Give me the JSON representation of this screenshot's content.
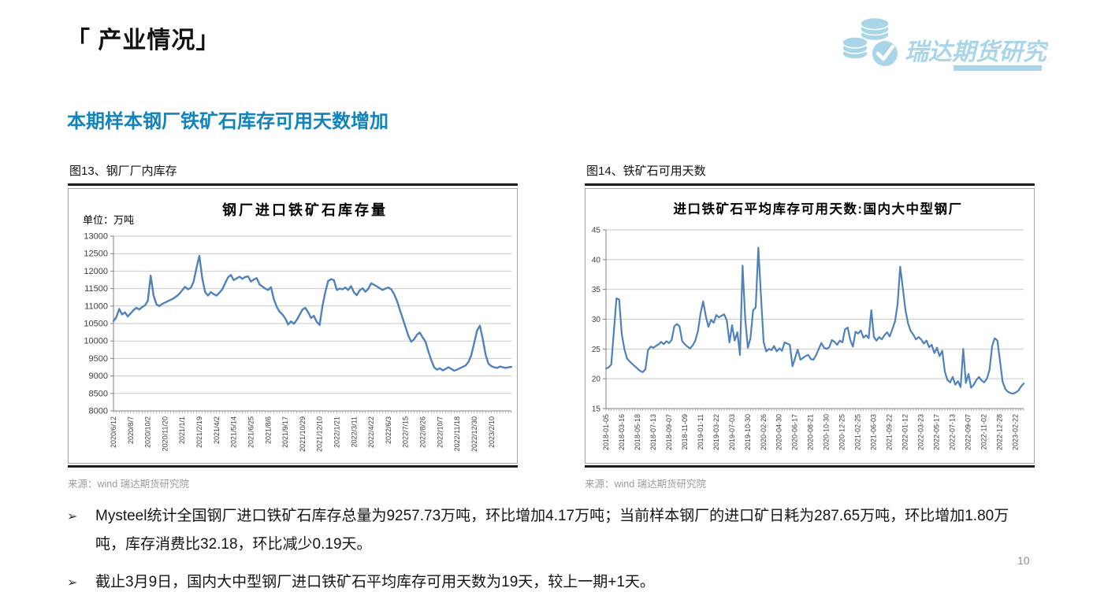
{
  "page": {
    "title": "「 产业情况」",
    "subtitle": "本期样本钢厂铁矿石库存可用天数增加",
    "page_number": "10"
  },
  "logo": {
    "text": "瑞达期货研究院",
    "icon": "coins-and-check-icon",
    "color": "#A9D5E9"
  },
  "colors": {
    "subtitle_accent": "#1283BC",
    "chart_line": "#4F81BD",
    "grid": "#c9c9c9",
    "axis": "#808080"
  },
  "chart_data": [
    {
      "type": "line",
      "caption": "图13、钢厂厂内库存",
      "title": "钢厂进口铁矿石库存量",
      "unit_label": "单位：万吨",
      "source": "来源：wind   瑞达期货研究院",
      "legend_position": "none",
      "grid": true,
      "line_color": "#4F81BD",
      "ylim": [
        8000,
        13000
      ],
      "yticks": [
        13000,
        12500,
        12000,
        11500,
        11000,
        10500,
        10000,
        9500,
        9000,
        8500,
        8000
      ],
      "x_labels": [
        "2020/6/12",
        "2020/8/7",
        "2020/10/2",
        "2020/11/20",
        "2021/1/1",
        "2021/2/19",
        "2021/4/2",
        "2021/5/14",
        "2021/6/25",
        "2021/8/6",
        "2021/9/17",
        "2021/10/29",
        "2021/12/10",
        "2022/1/21",
        "2022/3/11",
        "2022/4/22",
        "2022/6/3",
        "2022/7/15",
        "2022/8/26",
        "2022/10/7",
        "2022/11/18",
        "2022/12/30",
        "2023/2/10"
      ],
      "latest_value_note": "9257.73万吨",
      "values": [
        10570,
        10680,
        10920,
        10760,
        10820,
        10700,
        10790,
        10880,
        10950,
        10900,
        10970,
        11020,
        11150,
        11870,
        11300,
        11050,
        11000,
        11060,
        11100,
        11140,
        11180,
        11220,
        11280,
        11350,
        11450,
        11550,
        11480,
        11520,
        11700,
        12100,
        12440,
        11800,
        11400,
        11300,
        11400,
        11340,
        11300,
        11380,
        11480,
        11650,
        11820,
        11890,
        11740,
        11790,
        11840,
        11780,
        11830,
        11850,
        11700,
        11760,
        11800,
        11620,
        11560,
        11500,
        11460,
        11540,
        11200,
        10980,
        10840,
        10760,
        10650,
        10470,
        10560,
        10490,
        10600,
        10750,
        10900,
        10950,
        10820,
        10660,
        10720,
        10550,
        10460,
        11000,
        11400,
        11720,
        11770,
        11740,
        11460,
        11500,
        11480,
        11530,
        11460,
        11570,
        11390,
        11310,
        11450,
        11510,
        11410,
        11490,
        11650,
        11610,
        11560,
        11510,
        11460,
        11500,
        11530,
        11480,
        11350,
        11150,
        10900,
        10650,
        10400,
        10150,
        9980,
        10050,
        10180,
        10240,
        10100,
        9980,
        9700,
        9450,
        9250,
        9180,
        9220,
        9160,
        9200,
        9250,
        9200,
        9150,
        9180,
        9220,
        9260,
        9300,
        9400,
        9600,
        9950,
        10300,
        10440,
        10050,
        9600,
        9350,
        9280,
        9250,
        9230,
        9270,
        9250,
        9230,
        9250,
        9260
      ]
    },
    {
      "type": "line",
      "caption": "图14、铁矿石可用天数",
      "title": "进口铁矿石平均库存可用天数:国内大中型钢厂",
      "unit_label": "",
      "source": "来源：wind   瑞达期货研究院",
      "legend_position": "none",
      "grid": true,
      "line_color": "#4F81BD",
      "ylim": [
        15,
        45
      ],
      "yticks": [
        45,
        40,
        35,
        30,
        25,
        20,
        15
      ],
      "x_labels": [
        "2018-01-05",
        "2018-03-16",
        "2018-05-18",
        "2018-07-13",
        "2018-09-07",
        "2018-11-09",
        "2019-01-11",
        "2019-03-22",
        "2019-07-03",
        "2019-10-30",
        "2020-02-26",
        "2020-04-30",
        "2020-06-17",
        "2020-08-21",
        "2020-10-30",
        "2020-12-25",
        "2021-02-25",
        "2021-06-03",
        "2021-09-22",
        "2022-01-12",
        "2022-03-23",
        "2022-05-17",
        "2022-07-13",
        "2022-09-07",
        "2022-11-02",
        "2022-12-28",
        "2023-02-22"
      ],
      "latest_value_note": "19天",
      "values": [
        21.7,
        21.9,
        22.4,
        28.0,
        33.5,
        33.3,
        27.5,
        25.0,
        23.4,
        22.9,
        22.5,
        22.1,
        21.7,
        21.3,
        21.1,
        21.6,
        24.8,
        25.4,
        25.2,
        25.5,
        25.8,
        26.2,
        25.8,
        26.3,
        26.0,
        26.5,
        28.8,
        29.2,
        28.8,
        26.3,
        25.8,
        25.4,
        25.1,
        25.6,
        26.4,
        28.0,
        31.0,
        33.0,
        30.5,
        28.7,
        29.9,
        29.4,
        30.7,
        30.3,
        30.6,
        30.8,
        29.8,
        26.1,
        29.0,
        26.4,
        27.8,
        24.0,
        39.0,
        30.0,
        25.2,
        26.8,
        31.5,
        32.0,
        42.0,
        33.8,
        26.2,
        24.6,
        25.0,
        24.8,
        25.5,
        24.6,
        25.1,
        24.7,
        26.1,
        25.9,
        25.7,
        22.1,
        23.5,
        24.9,
        23.2,
        23.5,
        23.8,
        24.0,
        23.3,
        23.2,
        24.0,
        25.0,
        26.0,
        25.2,
        25.0,
        25.3,
        26.5,
        26.2,
        25.7,
        26.4,
        26.1,
        28.3,
        28.6,
        26.5,
        25.4,
        27.9,
        27.6,
        28.1,
        26.9,
        27.3,
        26.8,
        31.5,
        27.0,
        26.4,
        27.0,
        26.6,
        27.3,
        27.8,
        27.1,
        28.3,
        29.6,
        32.5,
        38.8,
        35.2,
        31.5,
        29.3,
        28.0,
        27.4,
        26.6,
        27.0,
        26.6,
        25.9,
        26.4,
        25.3,
        25.7,
        24.3,
        25.2,
        23.8,
        24.7,
        21.2,
        19.8,
        19.4,
        20.3,
        19.0,
        19.6,
        18.6,
        25.0,
        19.3,
        20.8,
        18.5,
        19.0,
        19.8,
        20.3,
        19.7,
        19.4,
        20.0,
        21.5,
        25.5,
        26.8,
        26.4,
        23.0,
        19.5,
        18.3,
        17.8,
        17.6,
        17.5,
        17.7,
        18.0,
        18.7,
        19.2
      ]
    }
  ],
  "bullets": [
    {
      "marker": "➢",
      "text": "Mysteel统计全国钢厂进口铁矿石库存总量为9257.73万吨，环比增加4.17万吨；当前样本钢厂的进口矿日耗为287.65万吨，环比增加1.80万吨，库存消费比32.18，环比减少0.19天。"
    },
    {
      "marker": "➢",
      "text": "截止3月9日，国内大中型钢厂进口铁矿石平均库存可用天数为19天，较上一期+1天。"
    }
  ]
}
